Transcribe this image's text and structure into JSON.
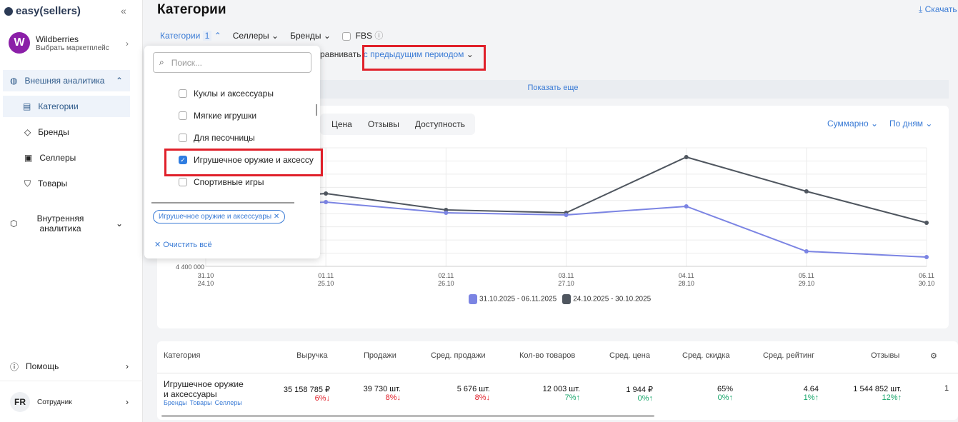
{
  "sidebar": {
    "logo": "easy(sellers)",
    "marketplace": {
      "avatar": "W",
      "name": "Wildberries",
      "sub": "Выбрать маркетплейс"
    },
    "items": [
      {
        "label": "Внешняя аналитика"
      },
      {
        "label": "Категории"
      },
      {
        "label": "Бренды"
      },
      {
        "label": "Селлеры"
      },
      {
        "label": "Товары"
      },
      {
        "label": "Внутренняя аналитика"
      }
    ],
    "help": "Помощь",
    "user": {
      "initials": "FR",
      "role": "Сотрудник"
    }
  },
  "header": {
    "title": "Категории",
    "download": "Скачать"
  },
  "filters": {
    "categories": "Категории",
    "categories_count": "1",
    "sellers": "Селлеры",
    "brands": "Бренды",
    "fbs": "FBS"
  },
  "compare": {
    "label": "равнивать",
    "value": "предыдущим периодом"
  },
  "show_more": "Показать еще",
  "dropdown": {
    "placeholder": "Поиск...",
    "options": [
      {
        "label": "Куклы и аксессуары",
        "checked": false
      },
      {
        "label": "Мягкие игрушки",
        "checked": false
      },
      {
        "label": "Для песочницы",
        "checked": false
      },
      {
        "label": "Игрушечное оружие и аксессу",
        "checked": true
      },
      {
        "label": "Спортивные игры",
        "checked": false
      }
    ],
    "tag": "Игрушечное оружие и аксессуары",
    "clear": "Очистить всё"
  },
  "chart_tabs": [
    "Цена",
    "Отзывы",
    "Доступность"
  ],
  "chart_controls": {
    "aggregate": "Суммарно",
    "period": "По дням"
  },
  "chart_data": {
    "type": "line",
    "x": [
      "31.10",
      "01.11",
      "02.11",
      "03.11",
      "04.11",
      "05.11",
      "06.11"
    ],
    "x2": [
      "24.10",
      "25.10",
      "26.10",
      "27.10",
      "28.10",
      "29.10",
      "30.10"
    ],
    "ylim": [
      4400000,
      6060000
    ],
    "yticks_visible": [
      "4 400 000"
    ],
    "grid": true,
    "legend": "bottom",
    "series": [
      {
        "name": "31.10.2025 - 06.11.2025",
        "color": "#7b84e3",
        "values": [
          5230000,
          5300000,
          5150000,
          5120000,
          5240000,
          4610000,
          4530000
        ]
      },
      {
        "name": "24.10.2025 - 30.10.2025",
        "color": "#4f565f",
        "values": [
          5300000,
          5420000,
          5190000,
          5150000,
          5930000,
          5450000,
          5010000
        ]
      }
    ]
  },
  "table": {
    "headers": [
      "Категория",
      "Выручка",
      "Продажи",
      "Сред. продажи",
      "Кол-во товаров",
      "Сред. цена",
      "Сред. скидка",
      "Сред. рейтинг",
      "Отзывы"
    ],
    "row": {
      "name1": "Игрушечное оружие",
      "name2": "и аксессуары",
      "links": [
        "Бренды",
        "Товары",
        "Селлеры"
      ],
      "cells": [
        {
          "v": "35 158 785 ₽",
          "d": "6%↓",
          "up": false
        },
        {
          "v": "39 730 шт.",
          "d": "8%↓",
          "up": false
        },
        {
          "v": "5 676 шт.",
          "d": "8%↓",
          "up": false
        },
        {
          "v": "12 003 шт.",
          "d": "7%↑",
          "up": true
        },
        {
          "v": "1 944 ₽",
          "d": "0%↑",
          "up": true
        },
        {
          "v": "65%",
          "d": "0%↑",
          "up": true
        },
        {
          "v": "4.64",
          "d": "1%↑",
          "up": true
        },
        {
          "v": "1 544 852 шт.",
          "d": "12%↑",
          "up": true
        }
      ]
    }
  }
}
